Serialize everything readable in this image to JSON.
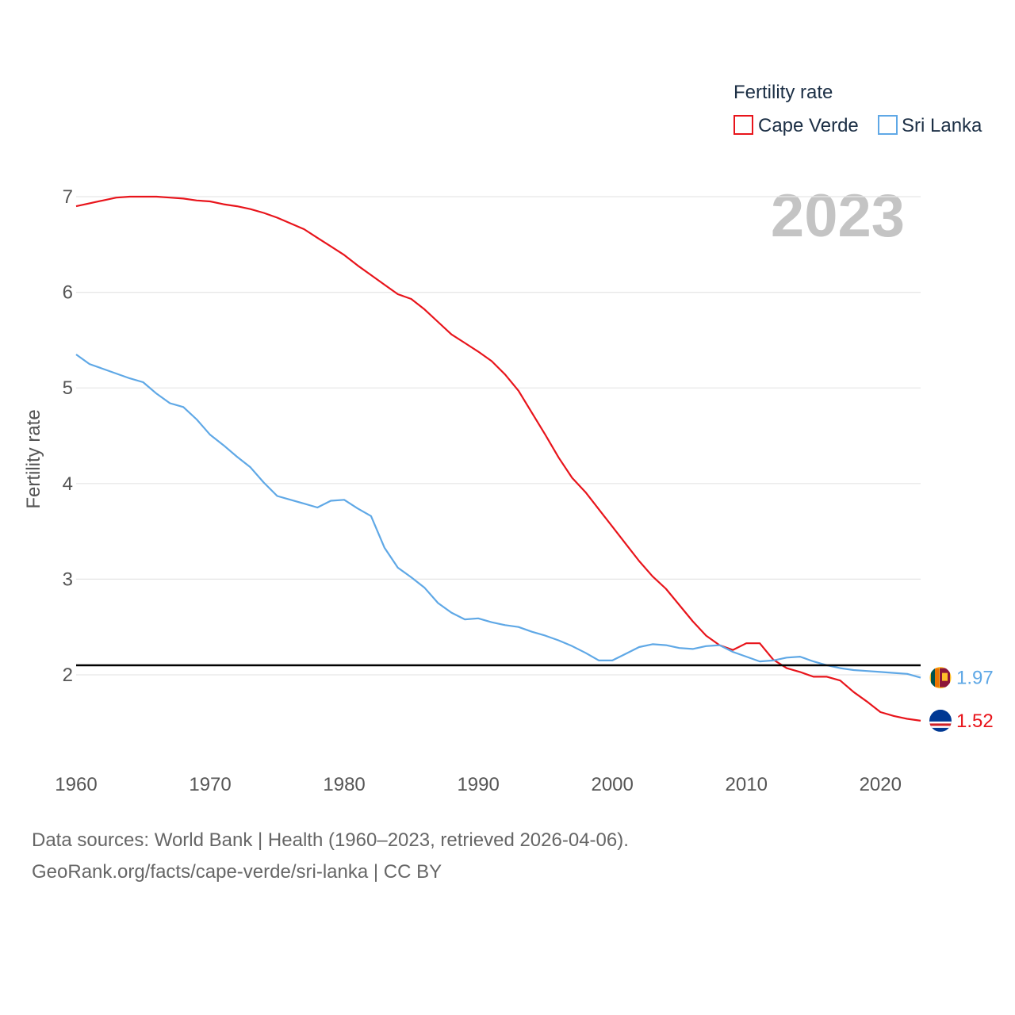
{
  "chart_data": {
    "type": "line",
    "legend_title": "Fertility rate",
    "ylabel": "Fertility rate",
    "year_label": "2023",
    "xlim": [
      1960,
      2023
    ],
    "ylim": [
      1.2,
      7.2
    ],
    "x_ticks": [
      "1960",
      "1970",
      "1980",
      "1990",
      "2000",
      "2010",
      "2020"
    ],
    "y_ticks": [
      "2",
      "3",
      "4",
      "5",
      "6",
      "7"
    ],
    "reference_line": 2.1,
    "x": [
      1960,
      1961,
      1962,
      1963,
      1964,
      1965,
      1966,
      1967,
      1968,
      1969,
      1970,
      1971,
      1972,
      1973,
      1974,
      1975,
      1976,
      1977,
      1978,
      1979,
      1980,
      1981,
      1982,
      1983,
      1984,
      1985,
      1986,
      1987,
      1988,
      1989,
      1990,
      1991,
      1992,
      1993,
      1994,
      1995,
      1996,
      1997,
      1998,
      1999,
      2000,
      2001,
      2002,
      2003,
      2004,
      2005,
      2006,
      2007,
      2008,
      2009,
      2010,
      2011,
      2012,
      2013,
      2014,
      2015,
      2016,
      2017,
      2018,
      2019,
      2020,
      2021,
      2022,
      2023
    ],
    "series": [
      {
        "name": "Cape Verde",
        "color": "#e8141b",
        "end_label": "1.52",
        "values": [
          6.9,
          6.93,
          6.96,
          6.99,
          7.0,
          7.0,
          7.0,
          6.99,
          6.98,
          6.96,
          6.95,
          6.92,
          6.9,
          6.87,
          6.83,
          6.78,
          6.72,
          6.66,
          6.57,
          6.48,
          6.39,
          6.28,
          6.18,
          6.08,
          5.98,
          5.93,
          5.82,
          5.69,
          5.56,
          5.47,
          5.38,
          5.28,
          5.14,
          4.97,
          4.74,
          4.51,
          4.27,
          4.06,
          3.91,
          3.73,
          3.55,
          3.37,
          3.19,
          3.03,
          2.9,
          2.73,
          2.56,
          2.41,
          2.31,
          2.26,
          2.33,
          2.33,
          2.16,
          2.07,
          2.03,
          1.98,
          1.98,
          1.94,
          1.82,
          1.72,
          1.61,
          1.57,
          1.54,
          1.52
        ]
      },
      {
        "name": "Sri Lanka",
        "color": "#5fa8e6",
        "end_label": "1.97",
        "values": [
          5.35,
          5.25,
          5.2,
          5.15,
          5.1,
          5.06,
          4.94,
          4.84,
          4.8,
          4.67,
          4.51,
          4.4,
          4.28,
          4.17,
          4.01,
          3.87,
          3.83,
          3.79,
          3.75,
          3.82,
          3.83,
          3.74,
          3.66,
          3.33,
          3.12,
          3.02,
          2.91,
          2.75,
          2.65,
          2.58,
          2.59,
          2.55,
          2.52,
          2.5,
          2.45,
          2.41,
          2.36,
          2.3,
          2.23,
          2.15,
          2.15,
          2.22,
          2.29,
          2.32,
          2.31,
          2.28,
          2.27,
          2.3,
          2.31,
          2.24,
          2.19,
          2.14,
          2.15,
          2.18,
          2.19,
          2.14,
          2.1,
          2.07,
          2.05,
          2.04,
          2.03,
          2.02,
          2.01,
          1.97
        ]
      }
    ]
  },
  "footer": {
    "line1": "Data sources: World Bank | Health (1960–2023, retrieved 2026-04-06).",
    "line2": "GeoRank.org/facts/cape-verde/sri-lanka | CC BY"
  }
}
